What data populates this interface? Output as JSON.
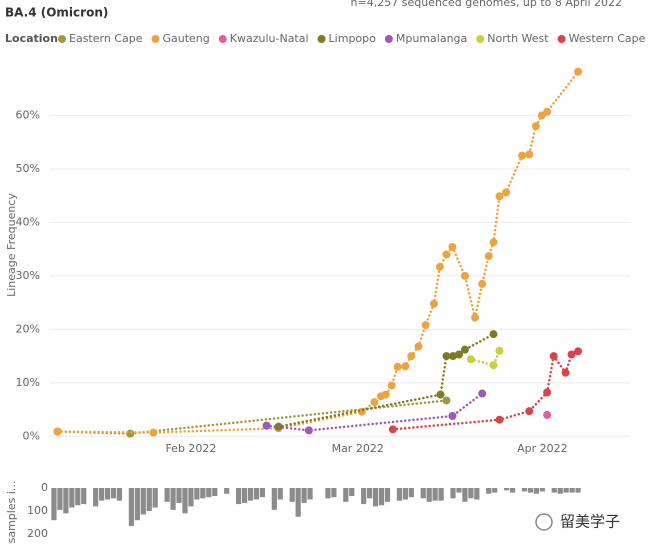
{
  "title": "BA.4 (Omicron)",
  "subtitle": "n=4,257 sequenced genomes, up to 8 April 2022",
  "watermark": "留美学子",
  "chart_data": [
    {
      "type": "line",
      "legend_title": "Location",
      "ylabel": "Lineage Frequency",
      "xlim": [
        8,
        99
      ],
      "xticks": [
        {
          "value": 32,
          "label": "Feb 2022"
        },
        {
          "value": 60,
          "label": "Mar 2022"
        },
        {
          "value": 91,
          "label": "Apr 2022"
        }
      ],
      "ylim": [
        -2,
        70
      ],
      "yticks": [
        {
          "value": 0,
          "label": "0%"
        },
        {
          "value": 10,
          "label": "10%"
        },
        {
          "value": 20,
          "label": "20%"
        },
        {
          "value": 30,
          "label": "30%"
        },
        {
          "value": 40,
          "label": "40%"
        },
        {
          "value": 50,
          "label": "50%"
        },
        {
          "value": 60,
          "label": "60%"
        }
      ],
      "grid": true,
      "series": [
        {
          "name": "Eastern Cape",
          "color": "#9c9a3a",
          "x": [
            9.6,
            21.8,
            74.9
          ],
          "values": [
            0.9,
            0.5,
            6.7
          ]
        },
        {
          "name": "Gauteng",
          "color": "#eaa444",
          "x": [
            9.6,
            25.7,
            46.7,
            60.7,
            62.8,
            63.9,
            64.7,
            65.7,
            66.7,
            68,
            69,
            70.2,
            71.4,
            72.8,
            73.8,
            74.9,
            75.9,
            78,
            79.7,
            80.9,
            82,
            82.8,
            83.8,
            84.9,
            87.6,
            88.8,
            89.9,
            90.9,
            91.8,
            97
          ],
          "values": [
            0.9,
            0.7,
            1.5,
            4.6,
            6.4,
            7.5,
            7.8,
            9.5,
            13,
            13.1,
            15,
            16.8,
            20.8,
            24.8,
            31.7,
            34,
            35.4,
            30,
            22.2,
            28.5,
            33.7,
            36.3,
            44.9,
            45.6,
            52.5,
            52.7,
            58,
            60,
            60.7,
            68.2
          ]
        },
        {
          "name": "Kwazulu-Natal",
          "color": "#e0609c",
          "x": [
            91.8
          ],
          "values": [
            4.0
          ]
        },
        {
          "name": "Limpopo",
          "color": "#7e7c22",
          "x": [
            46.7,
            73.9,
            74.9,
            76,
            77,
            78,
            82.8
          ],
          "values": [
            1.8,
            7.8,
            15,
            15,
            15.3,
            16.2,
            19.1
          ]
        },
        {
          "name": "Mpumalanga",
          "color": "#9b5bb8",
          "x": [
            44.7,
            51.8,
            75.9,
            80.9
          ],
          "values": [
            2.0,
            1.1,
            3.8,
            8
          ]
        },
        {
          "name": "North West",
          "color": "#c8d23e",
          "x": [
            79,
            82.8,
            83.8
          ],
          "values": [
            14.4,
            13.3,
            16
          ]
        },
        {
          "name": "Western Cape",
          "color": "#d9444c",
          "x": [
            65.9,
            83.8,
            88.8,
            91.8,
            92.9,
            94.9,
            95.9,
            97
          ],
          "values": [
            1.3,
            3.1,
            4.7,
            8.2,
            15,
            11.9,
            15.3,
            15.9
          ]
        }
      ]
    },
    {
      "type": "bar",
      "ylabel": "samples i...",
      "color": "#8c8c8c",
      "ylim": [
        0,
        200
      ],
      "yticks": [
        0,
        100,
        200
      ],
      "x": [
        9,
        10,
        11,
        12,
        13,
        14,
        16,
        17,
        18,
        19,
        20,
        22,
        23,
        24,
        25,
        26,
        28,
        29,
        30,
        31,
        32,
        33,
        34,
        35,
        36,
        38,
        40,
        41,
        42,
        43,
        44,
        46,
        47,
        49,
        50,
        51,
        52,
        55,
        56,
        58,
        59,
        61,
        62,
        63,
        64,
        65,
        67,
        68,
        69,
        71,
        72,
        73,
        74,
        76,
        77,
        78,
        79,
        80,
        82,
        83,
        85,
        86,
        88,
        89,
        90,
        91,
        93,
        94,
        95,
        96,
        97
      ],
      "values": [
        140,
        95,
        110,
        85,
        75,
        70,
        80,
        55,
        50,
        45,
        55,
        165,
        140,
        115,
        100,
        85,
        60,
        95,
        65,
        110,
        80,
        50,
        45,
        40,
        35,
        25,
        70,
        65,
        55,
        50,
        40,
        95,
        50,
        60,
        125,
        65,
        50,
        45,
        40,
        60,
        35,
        70,
        45,
        80,
        75,
        60,
        55,
        50,
        40,
        45,
        60,
        55,
        55,
        45,
        20,
        60,
        45,
        50,
        25,
        20,
        10,
        20,
        15,
        20,
        25,
        15,
        20,
        25,
        20,
        20,
        20
      ]
    }
  ]
}
